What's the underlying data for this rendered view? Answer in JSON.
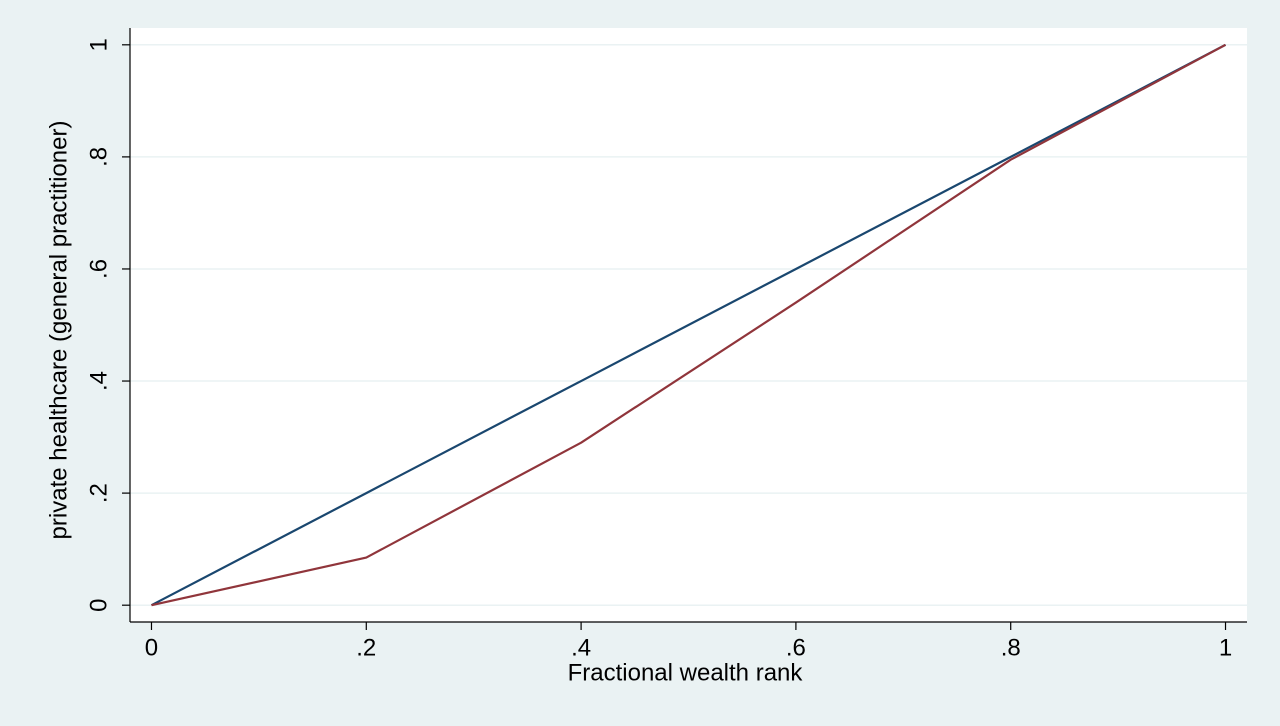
{
  "chart_data": {
    "type": "line",
    "x_label": "Fractional wealth rank",
    "y_label": "private healthcare (general practitioner)",
    "x": [
      0,
      0.2,
      0.4,
      0.6,
      0.8,
      1
    ],
    "series": [
      {
        "color": "#1a476f",
        "values": [
          0,
          0.2,
          0.4,
          0.6,
          0.8,
          1
        ]
      },
      {
        "color": "#90353b",
        "values": [
          0,
          0.085,
          0.29,
          0.54,
          0.795,
          1
        ]
      }
    ],
    "xlim": [
      -0.02,
      1.02
    ],
    "ylim": [
      -0.03,
      1.03
    ],
    "xticks": [
      0,
      {
        "value": 0.2,
        "label": ".2"
      },
      {
        "value": 0.4,
        "label": ".4"
      },
      {
        "value": 0.6,
        "label": ".6"
      },
      {
        "value": 0.8,
        "label": ".8"
      },
      1
    ],
    "yticks": [
      0,
      {
        "value": 0.2,
        "label": ".2"
      },
      {
        "value": 0.4,
        "label": ".4"
      },
      {
        "value": 0.6,
        "label": ".6"
      },
      {
        "value": 0.8,
        "label": ".8"
      },
      1
    ],
    "grid": true
  }
}
